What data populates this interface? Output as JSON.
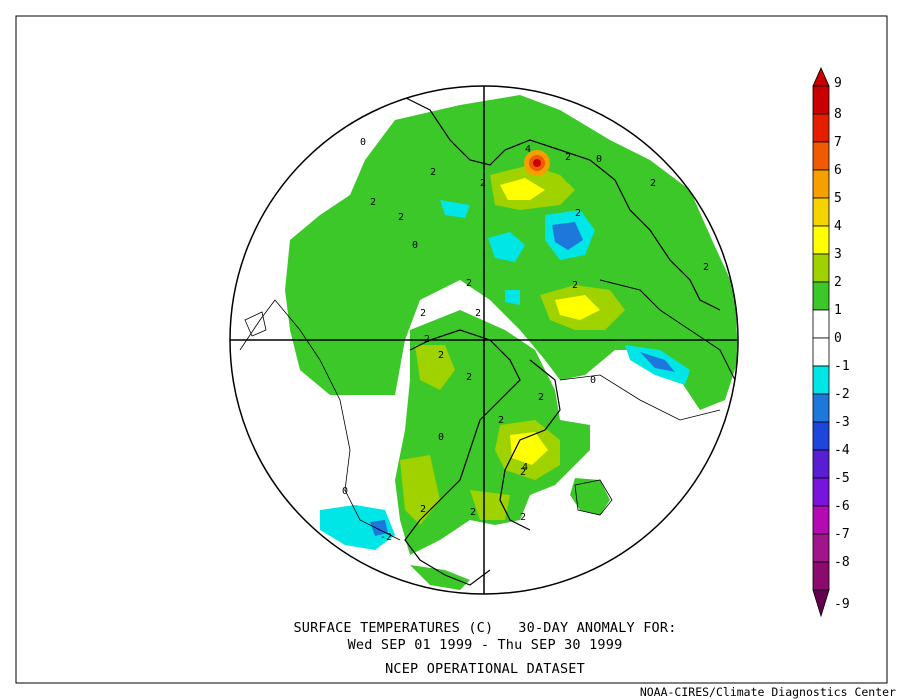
{
  "caption": {
    "line1": "SURFACE TEMPERATURES (C)   30-DAY ANOMALY FOR:",
    "line2": "Wed SEP 01 1999 - Thu SEP 30 1999",
    "line3": "NCEP OPERATIONAL DATASET"
  },
  "credit": "NOAA-CIRES/Climate Diagnostics Center",
  "colorbar": {
    "levels": [
      {
        "label": "9",
        "color": "#c80000"
      },
      {
        "label": "8",
        "color": "#e61e00"
      },
      {
        "label": "7",
        "color": "#f05a00"
      },
      {
        "label": "6",
        "color": "#f5a000"
      },
      {
        "label": "5",
        "color": "#f5d200"
      },
      {
        "label": "4",
        "color": "#ffff00"
      },
      {
        "label": "3",
        "color": "#a0d200"
      },
      {
        "label": "2",
        "color": "#3cc828"
      },
      {
        "label": "1",
        "color": "#ffffff"
      },
      {
        "label": "0",
        "color": "#ffffff"
      },
      {
        "label": "-1",
        "color": "#00e6e6"
      },
      {
        "label": "-2",
        "color": "#1e78dc"
      },
      {
        "label": "-3",
        "color": "#1e46dc"
      },
      {
        "label": "-4",
        "color": "#5a1ed2"
      },
      {
        "label": "-5",
        "color": "#7814dc"
      },
      {
        "label": "-6",
        "color": "#b40ab4"
      },
      {
        "label": "-7",
        "color": "#a0148c"
      },
      {
        "label": "-8",
        "color": "#8c0a6e"
      },
      {
        "label": "-9",
        "color": "#640050"
      }
    ]
  },
  "map": {
    "contour_labels": [
      "2",
      "4",
      "2",
      "0",
      "2",
      "2",
      "2",
      "0",
      "2",
      "2",
      "2",
      "2",
      "2",
      "2",
      "2",
      "2",
      "2",
      "2",
      "0",
      "2",
      "2",
      "2",
      "2",
      "4",
      "2",
      "2",
      "-2",
      "0",
      "0",
      "0"
    ]
  }
}
